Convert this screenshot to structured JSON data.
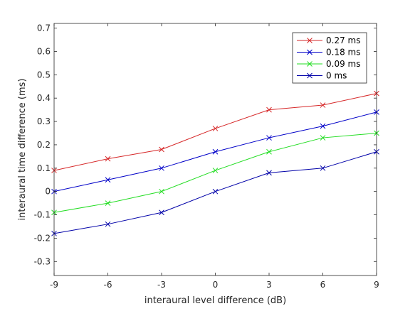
{
  "chart_data": {
    "type": "line",
    "title": "",
    "xlabel": "interaural level difference (dB)",
    "ylabel": "interaural time difference (ms)",
    "x": [
      -9,
      -6,
      -3,
      0,
      3,
      6,
      9
    ],
    "xlim": [
      -9,
      9
    ],
    "ylim": [
      -0.36,
      0.72
    ],
    "xticks": [
      -9,
      -6,
      -3,
      0,
      3,
      6,
      9
    ],
    "xtick_labels": [
      "-9",
      "-6",
      "-3",
      "0",
      "3",
      "6",
      "9"
    ],
    "yticks": [
      -0.3,
      -0.2,
      -0.1,
      0,
      0.1,
      0.2,
      0.3,
      0.4,
      0.5,
      0.6,
      0.7
    ],
    "ytick_labels": [
      "-0.3",
      "-0.2",
      "-0.1",
      "0",
      "0.1",
      "0.2",
      "0.3",
      "0.4",
      "0.5",
      "0.6",
      "0.7"
    ],
    "grid": false,
    "legend_position": "top-right",
    "marker": "x",
    "series": [
      {
        "name": "0.27 ms",
        "color": "#d62728",
        "values": [
          0.09,
          0.14,
          0.18,
          0.27,
          0.35,
          0.37,
          0.42
        ]
      },
      {
        "name": "0.18 ms",
        "color": "#0000c8",
        "values": [
          0.0,
          0.05,
          0.1,
          0.17,
          0.23,
          0.28,
          0.34
        ]
      },
      {
        "name": "0.09 ms",
        "color": "#22dd22",
        "values": [
          -0.09,
          -0.05,
          0.0,
          0.09,
          0.17,
          0.23,
          0.25
        ]
      },
      {
        "name": "0 ms",
        "color": "#0000a8",
        "values": [
          -0.18,
          -0.14,
          -0.09,
          0.0,
          0.08,
          0.1,
          0.17
        ]
      }
    ]
  }
}
